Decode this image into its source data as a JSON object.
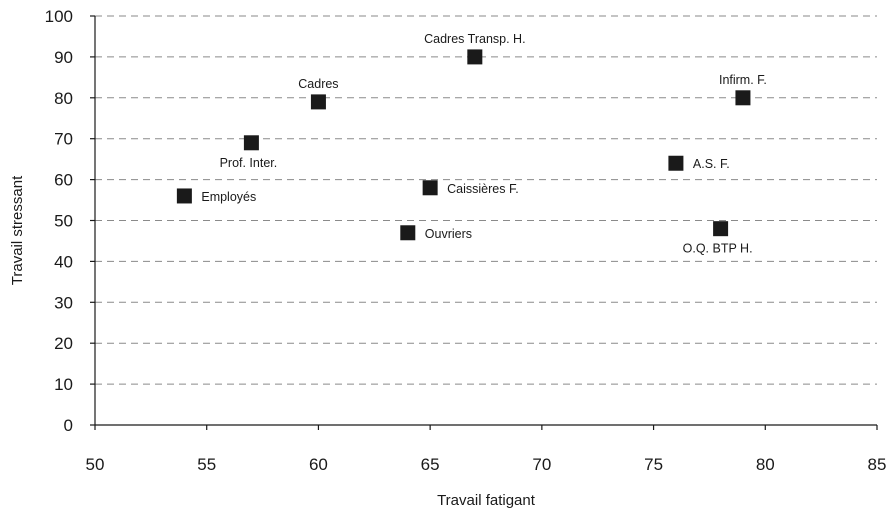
{
  "chart_data": {
    "type": "scatter",
    "title": "",
    "xlabel": "Travail fatigant",
    "ylabel": "Travail stressant",
    "xlim": [
      50,
      85
    ],
    "ylim": [
      0,
      100
    ],
    "xticks": [
      50,
      55,
      60,
      65,
      70,
      75,
      80,
      85
    ],
    "yticks": [
      0,
      10,
      20,
      30,
      40,
      50,
      60,
      70,
      80,
      90,
      100
    ],
    "xtick_labels": [
      "50",
      "55",
      "60",
      "65",
      "70",
      "75",
      "80",
      "85"
    ],
    "ytick_labels": [
      "0",
      "10",
      "20",
      "30",
      "40",
      "50",
      "60",
      "70",
      "80",
      "90",
      "100"
    ],
    "grid": true,
    "marker": "square",
    "marker_color": "#1a1a1a",
    "points": [
      {
        "label": "Employés",
        "x": 54,
        "y": 56,
        "label_pos": "right"
      },
      {
        "label": "Prof. Inter.",
        "x": 57,
        "y": 69,
        "label_pos": "below"
      },
      {
        "label": "Cadres",
        "x": 60,
        "y": 79,
        "label_pos": "above"
      },
      {
        "label": "Ouvriers",
        "x": 64,
        "y": 47,
        "label_pos": "right"
      },
      {
        "label": "Caissières F.",
        "x": 65,
        "y": 58,
        "label_pos": "right"
      },
      {
        "label": "Cadres Transp. H.",
        "x": 67,
        "y": 90,
        "label_pos": "above"
      },
      {
        "label": "A.S. F.",
        "x": 76,
        "y": 64,
        "label_pos": "right"
      },
      {
        "label": "O.Q. BTP H.",
        "x": 78,
        "y": 48,
        "label_pos": "below"
      },
      {
        "label": "Infirm. F.",
        "x": 79,
        "y": 80,
        "label_pos": "above"
      }
    ]
  }
}
